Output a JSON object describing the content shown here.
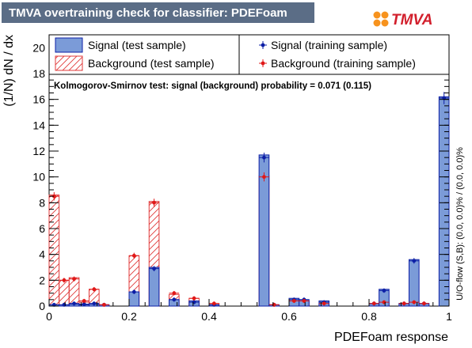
{
  "header": {
    "title": "TMVA overtraining check for classifier: PDEFoam",
    "logo_text": "TMVA"
  },
  "colors": {
    "title_bar": "#5b6d86",
    "signal_fill": "#7b9bd8",
    "signal_line": "#0d1fa6",
    "background_hatch": "#e03a3a",
    "background_marker": "#e01818",
    "logo_orange": "#f7931e",
    "logo_red": "#d21f2c"
  },
  "chart_data": {
    "type": "bar",
    "xlabel": "PDEFoam response",
    "ylabel": "(1/N) dN / dx",
    "xlim": [
      0,
      1
    ],
    "ylim": [
      0,
      21
    ],
    "x_ticks": [
      0,
      0.2,
      0.4,
      0.6,
      0.8,
      1
    ],
    "x_tick_labels": [
      "0",
      "0.2",
      "0.4",
      "0.6",
      "0.8",
      "1"
    ],
    "y_ticks": [
      0,
      2,
      4,
      6,
      8,
      10,
      12,
      14,
      16,
      18,
      20
    ],
    "y_tick_labels": [
      "0",
      "2",
      "4",
      "6",
      "8",
      "10",
      "12",
      "14",
      "16",
      "18",
      "20"
    ],
    "bin_width": 0.025,
    "bin_centers": [
      0.0125,
      0.0375,
      0.0625,
      0.0875,
      0.1125,
      0.1375,
      0.1625,
      0.1875,
      0.2125,
      0.2375,
      0.2625,
      0.2875,
      0.3125,
      0.3375,
      0.3625,
      0.3875,
      0.4125,
      0.4375,
      0.4625,
      0.4875,
      0.5125,
      0.5375,
      0.5625,
      0.5875,
      0.6125,
      0.6375,
      0.6625,
      0.6875,
      0.7125,
      0.7375,
      0.7625,
      0.7875,
      0.8125,
      0.8375,
      0.8625,
      0.8875,
      0.9125,
      0.9375,
      0.9625,
      0.9875
    ],
    "series": [
      {
        "name": "Signal (test sample)",
        "style": "filled-histogram",
        "values": [
          0.1,
          0.1,
          0.15,
          0.1,
          0.15,
          0.1,
          0,
          0,
          1.1,
          0,
          3.0,
          0,
          0.5,
          0,
          0.4,
          0,
          0.1,
          0,
          0,
          0,
          0,
          11.7,
          0.1,
          0,
          0.6,
          0.5,
          0,
          0.4,
          0,
          0,
          0,
          0,
          0.2,
          1.3,
          0,
          0.2,
          3.6,
          0.2,
          0,
          16.2
        ]
      },
      {
        "name": "Background (test sample)",
        "style": "hatched-histogram",
        "values": [
          8.6,
          2.0,
          2.2,
          0.3,
          1.3,
          0.1,
          0,
          0,
          3.9,
          0,
          8.1,
          0,
          0.9,
          0,
          0.6,
          0,
          0.2,
          0,
          0,
          0,
          0,
          10.1,
          0.1,
          0,
          0.4,
          0.4,
          0,
          0.2,
          0,
          0,
          0,
          0,
          0.1,
          0.3,
          0,
          0.2,
          0.3,
          0.1,
          0,
          0
        ]
      },
      {
        "name": "Signal (training sample)",
        "style": "markers",
        "values": [
          0.1,
          0.1,
          0.2,
          0.15,
          0.2,
          0.1,
          0,
          0,
          1.1,
          0,
          2.9,
          0,
          0.5,
          0,
          0.3,
          0,
          0.1,
          0,
          0,
          0,
          0,
          11.5,
          0.1,
          0,
          0.5,
          0.5,
          0,
          0.3,
          0,
          0,
          0,
          0,
          0.2,
          1.2,
          0,
          0.2,
          3.5,
          0.2,
          0,
          16.1
        ]
      },
      {
        "name": "Background (training sample)",
        "style": "markers",
        "values": [
          8.5,
          2.0,
          2.1,
          0.4,
          1.3,
          0.1,
          0,
          0,
          3.9,
          0,
          8.0,
          0,
          1.0,
          0,
          0.6,
          0,
          0.2,
          0,
          0,
          0,
          0,
          10.0,
          0.1,
          0,
          0.4,
          0.4,
          0,
          0.2,
          0,
          0,
          0,
          0,
          0.2,
          0.3,
          0,
          0.2,
          0.3,
          0.2,
          0,
          0
        ]
      }
    ],
    "annotations": {
      "ks_test": "Kolmogorov-Smirnov test: signal (background) probability = 0.071 (0.115)",
      "overflow": "U/O-flow (S,B): (0.0, 0.0)% / (0.0, 0.0)%"
    }
  }
}
